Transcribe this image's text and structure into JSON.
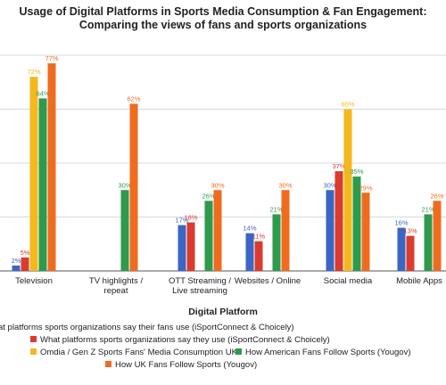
{
  "chart_data": {
    "type": "bar",
    "title": "Usage of Digital Platforms in Sports Media Consumption & Fan Engagement:",
    "subtitle": "Comparing the views of fans and sports organizations",
    "xlabel": "Digital Platform",
    "ylabel": "",
    "ylim": [
      0,
      80
    ],
    "grid": true,
    "legend_position": "bottom",
    "categories": [
      "Television",
      "TV highlights / repeat",
      "OTT Streaming / Live streaming",
      "Websites / Online",
      "Social media",
      "Mobile Apps"
    ],
    "series": [
      {
        "name": "What platforms sports organizations say their fans use (iSportConnect & Choicely)",
        "color": "#3b66c4",
        "values": [
          2,
          null,
          17,
          14,
          30,
          16
        ]
      },
      {
        "name": "What platforms sports organizations say they use (iSportConnect & Choicely)",
        "color": "#db3b2e",
        "values": [
          5,
          null,
          18,
          11,
          37,
          13
        ]
      },
      {
        "name": "Omdia / Gen Z Sports Fans' Media Consumption UK",
        "color": "#f4b81c",
        "values": [
          72,
          null,
          null,
          null,
          60,
          null
        ]
      },
      {
        "name": "How American Fans Follow Sports (Yougov)",
        "color": "#2e9a4c",
        "values": [
          64,
          30,
          26,
          21,
          35,
          21
        ]
      },
      {
        "name": "How UK Fans Follow Sports (Yougov)",
        "color": "#ef6c1f",
        "values": [
          77,
          62,
          30,
          30,
          29,
          26
        ]
      }
    ],
    "data_labels": [
      [
        "2%",
        "",
        "17%",
        "14%",
        "30%",
        "16%"
      ],
      [
        "5%",
        "",
        "18%",
        "11%",
        "37%",
        "13%"
      ],
      [
        "72%",
        "",
        "",
        "",
        "60%",
        ""
      ],
      [
        "64%",
        "30%",
        "26%",
        "21%",
        "35%",
        "21%"
      ],
      [
        "77%",
        "62%",
        "30%",
        "30%",
        "29%",
        "26%"
      ]
    ],
    "legend_entries": [
      "at platforms sports organizations say their fans use (iSportConnect & Choicely)",
      "What platforms sports organizations say they use (iSportConnect & Choicely)",
      "Omdia / Gen Z Sports Fans' Media Consumption UK",
      "How American Fans Follow Sports (Yougov)",
      "How UK Fans Follow Sports (Yougov)"
    ],
    "category_labels": [
      [
        "Television"
      ],
      [
        "TV highlights /",
        "repeat"
      ],
      [
        "OTT Streaming /",
        "Live streaming"
      ],
      [
        "Websites / Online"
      ],
      [
        "Social media"
      ],
      [
        "Mobile Apps"
      ]
    ]
  }
}
